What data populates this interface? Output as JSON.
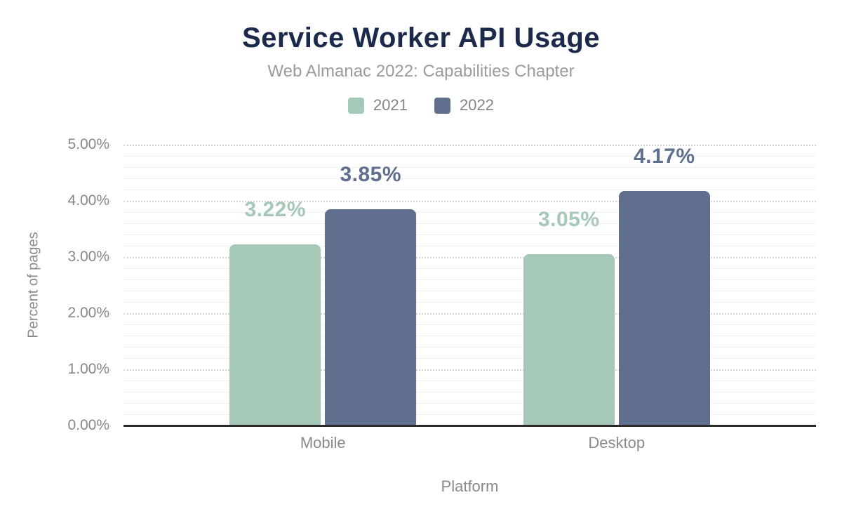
{
  "chart_data": {
    "type": "bar",
    "title": "Service Worker API Usage",
    "subtitle": "Web Almanac 2022: Capabilities Chapter",
    "xlabel": "Platform",
    "ylabel": "Percent of pages",
    "categories": [
      "Mobile",
      "Desktop"
    ],
    "series": [
      {
        "name": "2021",
        "color": "#a6c8b7",
        "values": [
          3.22,
          3.05
        ],
        "labels": [
          "3.22%",
          "3.05%"
        ]
      },
      {
        "name": "2022",
        "color": "#5f6f8d",
        "values": [
          3.85,
          4.17
        ],
        "labels": [
          "3.85%",
          "4.17%"
        ]
      }
    ],
    "ylim": [
      0,
      5
    ],
    "y_ticks": [
      "0.00%",
      "1.00%",
      "2.00%",
      "3.00%",
      "4.00%",
      "5.00%"
    ],
    "y_minor_step": 0.2,
    "grid": "major-dotted-minor-faint",
    "legend_position": "top"
  },
  "colors": {
    "title": "#1b2a4a",
    "subtitle": "#9b9b9b",
    "axis_text": "#8a8a8a",
    "tick_text": "#878787",
    "axis_line": "#2b2b2b",
    "grid_major": "#d2d2d2",
    "grid_minor": "#f1f1f1",
    "background": "#ffffff"
  }
}
